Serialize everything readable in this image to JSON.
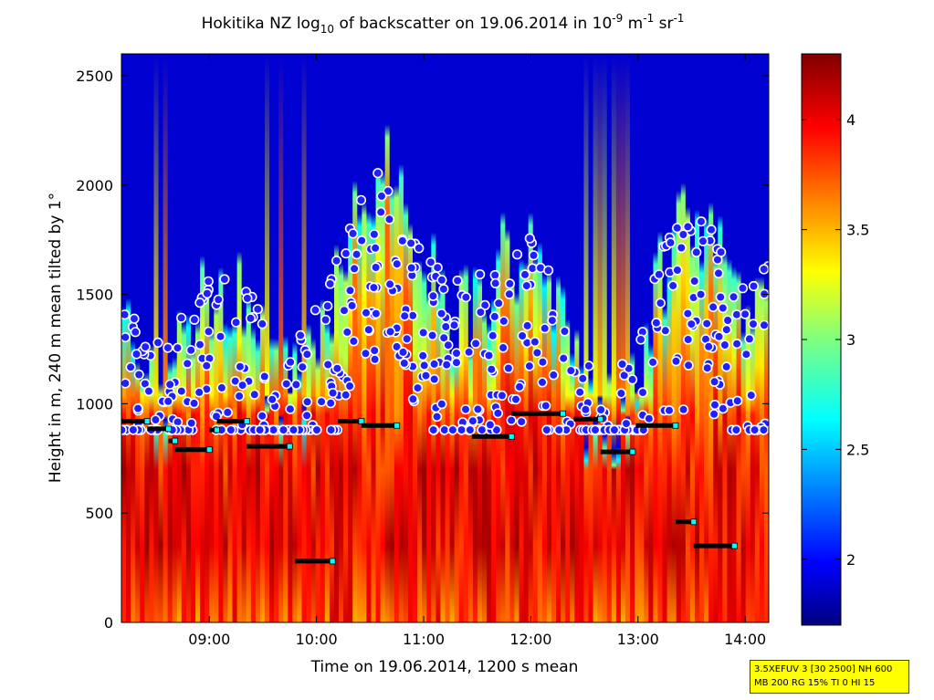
{
  "chart_data": {
    "type": "heatmap",
    "title": {
      "prefix": "Hokitika NZ log",
      "prefix_sub": "10",
      "mid": " of backscatter on 19.06.2014 in 10",
      "unit1_sup": "-9",
      "unit2": " m",
      "unit2_sup": "-1",
      "unit3": " sr",
      "unit3_sup": "-1"
    },
    "xlabel": "Time on 19.06.2014, 1200 s mean",
    "ylabel": "Height in m, 240 m mean tilted by 1°",
    "x_range_hours": [
      8.18,
      14.22
    ],
    "ylim": [
      0,
      2600
    ],
    "x_ticks": [
      "09:00",
      "10:00",
      "11:00",
      "12:00",
      "13:00",
      "14:00"
    ],
    "x_tick_hours": [
      9,
      10,
      11,
      12,
      13,
      14
    ],
    "y_ticks": [
      0,
      500,
      1000,
      1500,
      2000,
      2500
    ],
    "colorbar": {
      "range": [
        1.7,
        4.3
      ],
      "ticks": [
        "2",
        "2.5",
        "3",
        "3.5",
        "4"
      ],
      "tick_values": [
        2,
        2.5,
        3,
        3.5,
        4
      ],
      "colormap": "jet"
    },
    "mixing_layer_segments": [
      {
        "t0": 8.18,
        "t1": 8.42,
        "h": 920
      },
      {
        "t0": 8.42,
        "t1": 8.62,
        "h": 885
      },
      {
        "t0": 8.62,
        "t1": 8.68,
        "h": 830
      },
      {
        "t0": 8.68,
        "t1": 9.0,
        "h": 790
      },
      {
        "t0": 9.0,
        "t1": 9.07,
        "h": 880
      },
      {
        "t0": 9.07,
        "t1": 9.35,
        "h": 920
      },
      {
        "t0": 9.35,
        "t1": 9.75,
        "h": 805
      },
      {
        "t0": 9.8,
        "t1": 10.15,
        "h": 280
      },
      {
        "t0": 10.2,
        "t1": 10.42,
        "h": 920
      },
      {
        "t0": 10.42,
        "t1": 10.75,
        "h": 900
      },
      {
        "t0": 11.45,
        "t1": 11.82,
        "h": 850
      },
      {
        "t0": 11.82,
        "t1": 12.3,
        "h": 955
      },
      {
        "t0": 12.4,
        "t1": 12.65,
        "h": 930
      },
      {
        "t0": 12.65,
        "t1": 12.95,
        "h": 780
      },
      {
        "t0": 12.98,
        "t1": 13.35,
        "h": 900
      },
      {
        "t0": 13.35,
        "t1": 13.52,
        "h": 460
      },
      {
        "t0": 13.52,
        "t1": 13.9,
        "h": 350
      }
    ]
  },
  "info_box": {
    "line1": "3.5XEFUV 3 [30 2500] NH 600",
    "line2": "MB 200 RG 15% TI 0 HI 15"
  }
}
